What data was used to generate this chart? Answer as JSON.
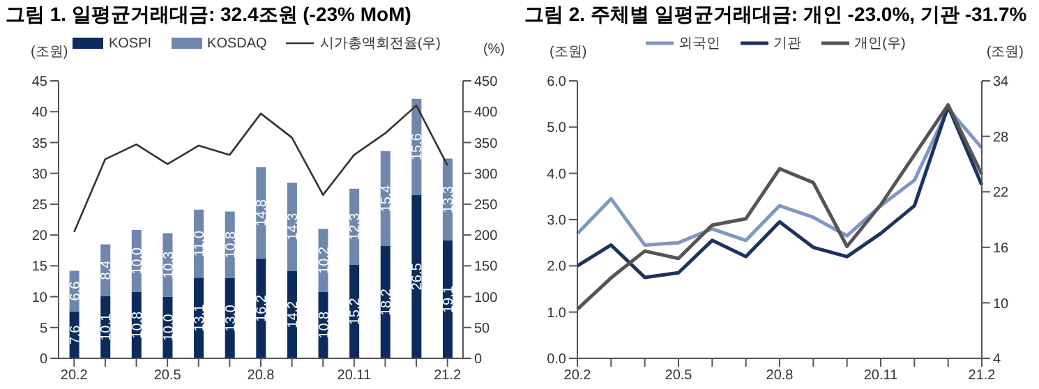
{
  "chart_data": [
    {
      "type": "bar",
      "title": "그림 1. 일평균거래대금: 32.4조원 (-23% MoM)",
      "ylabel": "(조원)",
      "y2label": "(%)",
      "stacked": true,
      "legend": "top",
      "grid": false,
      "categories": [
        "20.2",
        null,
        null,
        "20.5",
        null,
        null,
        "20.8",
        null,
        null,
        "20.11",
        null,
        null,
        "21.2"
      ],
      "series": [
        {
          "name": "KOSPI",
          "color": "#0d2a5c",
          "values": [
            7.6,
            10.1,
            10.8,
            10.0,
            13.1,
            13.0,
            16.2,
            14.2,
            10.8,
            15.2,
            18.2,
            26.5,
            19.1
          ],
          "value_labels": [
            "7.6",
            "10.1",
            "10.8",
            "10.0",
            "13.1",
            "13.0",
            "16.2",
            "14.2",
            "10.8",
            "15.2",
            "18.2",
            "26.5",
            "19.1"
          ]
        },
        {
          "name": "KOSDAQ",
          "color": "#6f86ad",
          "values": [
            6.6,
            8.4,
            10.0,
            10.3,
            11.0,
            10.8,
            14.8,
            14.3,
            10.2,
            12.3,
            15.4,
            15.6,
            13.3
          ],
          "value_labels": [
            "6.6",
            "8.4",
            "10.0",
            "10.3",
            "11.0",
            "10.8",
            "14.8",
            "14.3",
            "10.2",
            "12.3",
            "15.4",
            "15.6",
            "13.3"
          ]
        },
        {
          "name": "시가총액회전율(우)",
          "type": "line",
          "axis": "y2",
          "color": "#333333",
          "values": [
            205,
            323,
            347,
            315,
            345,
            330,
            397,
            358,
            265,
            330,
            365,
            410,
            313
          ]
        }
      ],
      "ylim": [
        0,
        45
      ],
      "yticks": [
        0,
        5,
        10,
        15,
        20,
        25,
        30,
        35,
        40,
        45
      ],
      "y2lim": [
        0,
        450
      ],
      "y2ticks": [
        0,
        50,
        100,
        150,
        200,
        250,
        300,
        350,
        400,
        450
      ]
    },
    {
      "type": "line",
      "title": "그림 2. 주체별 일평균거래대금: 개인 -23.0%, 기관 -31.7%",
      "ylabel": "(조원)",
      "y2label": "(조원)",
      "legend": "top",
      "grid": false,
      "marker": "none",
      "categories": [
        "20.2",
        null,
        null,
        "20.5",
        null,
        null,
        "20.8",
        null,
        null,
        "20.11",
        null,
        null,
        "21.2"
      ],
      "series": [
        {
          "name": "외국인",
          "color": "#7f97c4",
          "values": [
            2.7,
            3.45,
            2.45,
            2.5,
            2.8,
            2.55,
            3.3,
            3.05,
            2.65,
            3.3,
            3.85,
            5.4,
            4.55
          ]
        },
        {
          "name": "기관",
          "color": "#1a3360",
          "values": [
            2.0,
            2.45,
            1.75,
            1.85,
            2.55,
            2.2,
            2.95,
            2.4,
            2.2,
            2.7,
            3.3,
            5.45,
            3.75
          ]
        },
        {
          "name": "개인(우)",
          "axis": "y2",
          "color": "#555555",
          "values": [
            9.3,
            12.7,
            15.6,
            14.8,
            18.4,
            19.1,
            24.5,
            23.0,
            16.1,
            20.6,
            26.0,
            31.4,
            23.9
          ]
        }
      ],
      "ylim": [
        0,
        6
      ],
      "yticks": [
        {
          "value": 0,
          "label": "0.0"
        },
        {
          "value": 1,
          "label": "1.0"
        },
        {
          "value": 2,
          "label": "2.0"
        },
        {
          "value": 3,
          "label": "3.0"
        },
        {
          "value": 4,
          "label": "4.0"
        },
        {
          "value": 5,
          "label": "5.0"
        },
        {
          "value": 6,
          "label": "6.0"
        }
      ],
      "y2lim": [
        4,
        34
      ],
      "y2ticks": [
        4,
        10,
        16,
        22,
        28,
        34
      ]
    }
  ]
}
